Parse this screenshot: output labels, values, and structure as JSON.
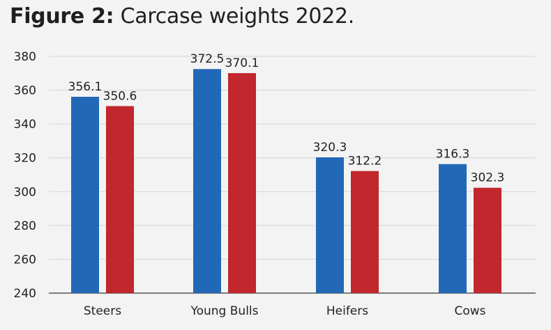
{
  "header": {
    "title_lead": "Figure 2:",
    "title_rest": "Carcase weights 2022."
  },
  "colors": {
    "series_blue": "#2169b6",
    "series_red": "#c1272d",
    "grid": "#d6d6d6",
    "background": "#f3f3f3"
  },
  "chart_data": {
    "type": "bar",
    "title": "Figure 2: Carcase weights 2022.",
    "categories": [
      "Steers",
      "Young Bulls",
      "Heifers",
      "Cows"
    ],
    "series": [
      {
        "color": "#2169b6",
        "values": [
          356.1,
          372.5,
          320.3,
          316.3
        ],
        "labels": [
          "356.1",
          "372.5",
          "320.3",
          "316.3"
        ]
      },
      {
        "color": "#c1272d",
        "values": [
          350.6,
          370.1,
          312.2,
          302.3
        ],
        "labels": [
          "350.6",
          "370.1",
          "312.2",
          "302.3"
        ]
      }
    ],
    "ylim": [
      240,
      380
    ],
    "yticks": [
      240,
      260,
      280,
      300,
      320,
      340,
      360,
      380
    ],
    "ytick_labels": [
      "240",
      "260",
      "280",
      "300",
      "320",
      "340",
      "360",
      "380"
    ],
    "grid": true,
    "legend": "none"
  }
}
